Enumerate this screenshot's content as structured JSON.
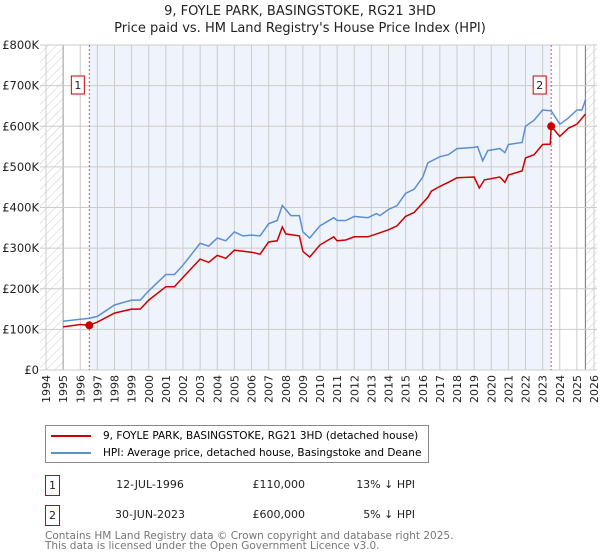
{
  "chart_data": {
    "type": "line",
    "title": "9, FOYLE PARK, BASINGSTOKE, RG21 3HD",
    "subtitle": "Price paid vs. HM Land Registry's House Price Index (HPI)",
    "xlim": [
      1994,
      2026
    ],
    "ylim": [
      0,
      800000
    ],
    "x_ticks": [
      "1994",
      "1995",
      "1996",
      "1997",
      "1998",
      "1999",
      "2000",
      "2001",
      "2002",
      "2003",
      "2004",
      "2005",
      "2006",
      "2007",
      "2008",
      "2009",
      "2010",
      "2011",
      "2012",
      "2013",
      "2014",
      "2015",
      "2016",
      "2017",
      "2018",
      "2019",
      "2020",
      "2021",
      "2022",
      "2023",
      "2024",
      "2025",
      "2026"
    ],
    "y_ticks": [
      {
        "v": 0,
        "label": "£0"
      },
      {
        "v": 100000,
        "label": "£100K"
      },
      {
        "v": 200000,
        "label": "£200K"
      },
      {
        "v": 300000,
        "label": "£300K"
      },
      {
        "v": 400000,
        "label": "£400K"
      },
      {
        "v": 500000,
        "label": "£500K"
      },
      {
        "v": 600000,
        "label": "£600K"
      },
      {
        "v": 700000,
        "label": "£700K"
      },
      {
        "v": 800000,
        "label": "£800K"
      }
    ],
    "grid": true,
    "series": [
      {
        "name": "9, FOYLE PARK, BASINGSTOKE, RG21 3HD (detached house)",
        "color": "#cc0000",
        "points": [
          [
            1995,
            106
          ],
          [
            1996,
            112
          ],
          [
            1996.53,
            110
          ],
          [
            1997,
            118
          ],
          [
            1998,
            140
          ],
          [
            1999,
            150
          ],
          [
            1999.5,
            150
          ],
          [
            2000,
            172
          ],
          [
            2001,
            205
          ],
          [
            2001.5,
            205
          ],
          [
            2002,
            228
          ],
          [
            2003,
            273
          ],
          [
            2003.5,
            265
          ],
          [
            2004,
            282
          ],
          [
            2004.5,
            275
          ],
          [
            2005,
            295
          ],
          [
            2006,
            290
          ],
          [
            2006.5,
            285
          ],
          [
            2007,
            315
          ],
          [
            2007.5,
            318
          ],
          [
            2007.8,
            352
          ],
          [
            2008,
            335
          ],
          [
            2008.8,
            330
          ],
          [
            2009,
            292
          ],
          [
            2009.4,
            278
          ],
          [
            2010,
            308
          ],
          [
            2010.8,
            328
          ],
          [
            2011,
            318
          ],
          [
            2011.5,
            320
          ],
          [
            2012,
            328
          ],
          [
            2012.8,
            328
          ],
          [
            2013.3,
            335
          ],
          [
            2014,
            345
          ],
          [
            2014.5,
            355
          ],
          [
            2015,
            378
          ],
          [
            2015.5,
            388
          ],
          [
            2016.3,
            425
          ],
          [
            2016.5,
            440
          ],
          [
            2017,
            452
          ],
          [
            2017.5,
            462
          ],
          [
            2018,
            473
          ],
          [
            2019,
            475
          ],
          [
            2019.3,
            448
          ],
          [
            2019.6,
            468
          ],
          [
            2020.5,
            475
          ],
          [
            2020.8,
            462
          ],
          [
            2021,
            480
          ],
          [
            2021.8,
            490
          ],
          [
            2022,
            522
          ],
          [
            2022.5,
            530
          ],
          [
            2023,
            555
          ],
          [
            2023.45,
            556
          ],
          [
            2023.5,
            600
          ],
          [
            2024,
            575
          ],
          [
            2024.5,
            595
          ],
          [
            2025,
            605
          ],
          [
            2025.5,
            630
          ]
        ]
      },
      {
        "name": "HPI: Average price, detached house, Basingstoke and Deane",
        "color": "#5b8fd4",
        "points": [
          [
            1995,
            120
          ],
          [
            1996,
            125
          ],
          [
            1996.5,
            127
          ],
          [
            1997,
            132
          ],
          [
            1998,
            160
          ],
          [
            1999,
            172
          ],
          [
            1999.5,
            172
          ],
          [
            2000,
            195
          ],
          [
            2001,
            235
          ],
          [
            2001.5,
            235
          ],
          [
            2002,
            258
          ],
          [
            2003,
            312
          ],
          [
            2003.5,
            305
          ],
          [
            2004,
            325
          ],
          [
            2004.5,
            318
          ],
          [
            2005,
            340
          ],
          [
            2005.5,
            330
          ],
          [
            2006,
            332
          ],
          [
            2006.5,
            330
          ],
          [
            2007,
            360
          ],
          [
            2007.5,
            368
          ],
          [
            2007.8,
            405
          ],
          [
            2008,
            395
          ],
          [
            2008.3,
            380
          ],
          [
            2008.8,
            380
          ],
          [
            2009,
            340
          ],
          [
            2009.4,
            325
          ],
          [
            2010,
            355
          ],
          [
            2010.8,
            375
          ],
          [
            2011,
            368
          ],
          [
            2011.5,
            368
          ],
          [
            2012,
            378
          ],
          [
            2012.8,
            375
          ],
          [
            2013.3,
            385
          ],
          [
            2013.5,
            380
          ],
          [
            2014,
            395
          ],
          [
            2014.5,
            405
          ],
          [
            2015,
            435
          ],
          [
            2015.5,
            445
          ],
          [
            2016,
            475
          ],
          [
            2016.3,
            510
          ],
          [
            2017,
            525
          ],
          [
            2017.5,
            530
          ],
          [
            2018,
            545
          ],
          [
            2019,
            548
          ],
          [
            2019.2,
            550
          ],
          [
            2019.5,
            515
          ],
          [
            2019.8,
            540
          ],
          [
            2020.5,
            545
          ],
          [
            2020.8,
            535
          ],
          [
            2021,
            555
          ],
          [
            2021.8,
            560
          ],
          [
            2022,
            600
          ],
          [
            2022.5,
            615
          ],
          [
            2023,
            640
          ],
          [
            2023.5,
            638
          ],
          [
            2024,
            605
          ],
          [
            2024.5,
            620
          ],
          [
            2025,
            640
          ],
          [
            2025.3,
            640
          ],
          [
            2025.5,
            665
          ]
        ]
      }
    ],
    "annotations": [
      {
        "label": "1",
        "x": 1996.53,
        "y": 110000
      },
      {
        "label": "2",
        "x": 2023.5,
        "y": 600000
      }
    ],
    "legend_placement": "below"
  },
  "legend": {
    "items": [
      "9, FOYLE PARK, BASINGSTOKE, RG21 3HD (detached house)",
      "HPI: Average price, detached house, Basingstoke and Deane"
    ]
  },
  "sales": [
    {
      "num": "1",
      "date": "12-JUL-1996",
      "price": "£110,000",
      "hpi": "13% ↓ HPI"
    },
    {
      "num": "2",
      "date": "30-JUN-2023",
      "price": "£600,000",
      "hpi": "5% ↓ HPI"
    }
  ],
  "footer": {
    "line1": "Contains HM Land Registry data © Crown copyright and database right 2025.",
    "line2": "This data is licensed under the Open Government Licence v3.0."
  }
}
